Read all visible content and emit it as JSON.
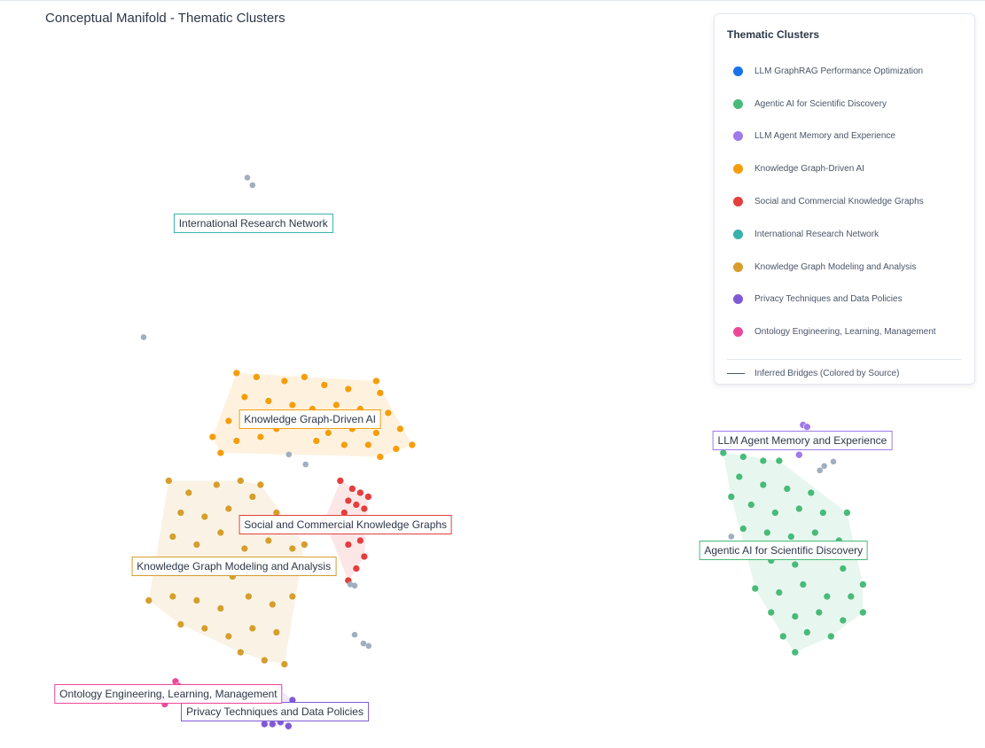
{
  "title": "Conceptual Manifold - Thematic Clusters",
  "legend": {
    "title": "Thematic Clusters",
    "bridges_label": "Inferred Bridges (Colored by Source)",
    "bridges_color": "#4a5568"
  },
  "chart_data": {
    "type": "scatter",
    "title": "Conceptual Manifold - Thematic Clusters",
    "grid": false,
    "legend_position": "top-right",
    "xlim": [
      -12.33,
      12.36
    ],
    "ylim": [
      -9.4,
      9.33
    ],
    "unassigned_color": "#a0aec0",
    "unassigned_points": [
      [
        -6.13,
        4.9
      ],
      [
        -6.0,
        4.71
      ],
      [
        -8.73,
        0.9
      ],
      [
        -5.09,
        -2.04
      ],
      [
        -4.67,
        -2.29
      ],
      [
        -3.44,
        -5.33
      ],
      [
        -3.55,
        -5.3
      ],
      [
        -3.44,
        -6.56
      ],
      [
        -3.22,
        -6.78
      ],
      [
        -3.09,
        -6.84
      ],
      [
        8.22,
        -2.44
      ],
      [
        8.56,
        -2.22
      ],
      [
        8.33,
        -2.33
      ],
      [
        6.0,
        -4.1
      ]
    ],
    "clusters": [
      {
        "name": "LLM GraphRAG Performance Optimization",
        "color": "#1a73e8",
        "points": [],
        "label_at": null
      },
      {
        "name": "Agentic AI for Scientific Discovery",
        "color": "#48bb78",
        "label_at": [
          7.31,
          -4.44
        ],
        "points": [
          [
            5.8,
            -2.0
          ],
          [
            6.3,
            -2.1
          ],
          [
            6.8,
            -2.2
          ],
          [
            7.2,
            -2.2
          ],
          [
            6.2,
            -2.6
          ],
          [
            6.8,
            -2.8
          ],
          [
            7.4,
            -2.9
          ],
          [
            8.0,
            -3.0
          ],
          [
            6.0,
            -3.1
          ],
          [
            6.5,
            -3.3
          ],
          [
            7.1,
            -3.5
          ],
          [
            7.7,
            -3.4
          ],
          [
            8.3,
            -3.5
          ],
          [
            8.9,
            -3.5
          ],
          [
            6.3,
            -3.9
          ],
          [
            6.9,
            -4.0
          ],
          [
            7.5,
            -4.1
          ],
          [
            8.1,
            -4.0
          ],
          [
            8.7,
            -4.2
          ],
          [
            9.1,
            -4.4
          ],
          [
            6.4,
            -4.6
          ],
          [
            7.0,
            -4.7
          ],
          [
            7.6,
            -4.8
          ],
          [
            8.2,
            -4.6
          ],
          [
            8.8,
            -4.9
          ],
          [
            9.3,
            -5.3
          ],
          [
            6.6,
            -5.4
          ],
          [
            7.2,
            -5.5
          ],
          [
            7.8,
            -5.3
          ],
          [
            8.4,
            -5.6
          ],
          [
            9.0,
            -5.6
          ],
          [
            7.0,
            -6.0
          ],
          [
            7.6,
            -6.1
          ],
          [
            8.2,
            -6.0
          ],
          [
            8.8,
            -6.2
          ],
          [
            9.3,
            -6.0
          ],
          [
            7.3,
            -6.6
          ],
          [
            7.9,
            -6.5
          ],
          [
            8.5,
            -6.6
          ],
          [
            7.6,
            -7.0
          ]
        ]
      },
      {
        "name": "LLM Agent Memory and Experience",
        "color": "#9f7aea",
        "label_at": [
          7.78,
          -1.69
        ],
        "points": [
          [
            7.8,
            -1.3
          ],
          [
            7.9,
            -1.35
          ],
          [
            7.7,
            -2.05
          ]
        ]
      },
      {
        "name": "Knowledge Graph-Driven AI",
        "color": "#f59e0b",
        "label_at": [
          -4.56,
          -1.16
        ],
        "points": [
          [
            -6.4,
            0.0
          ],
          [
            -5.9,
            -0.1
          ],
          [
            -5.2,
            -0.2
          ],
          [
            -4.7,
            -0.1
          ],
          [
            -4.2,
            -0.3
          ],
          [
            -3.6,
            -0.4
          ],
          [
            -2.9,
            -0.2
          ],
          [
            -2.8,
            -0.5
          ],
          [
            -6.2,
            -0.6
          ],
          [
            -5.6,
            -0.7
          ],
          [
            -5.0,
            -0.8
          ],
          [
            -4.5,
            -0.9
          ],
          [
            -3.9,
            -0.8
          ],
          [
            -3.3,
            -0.9
          ],
          [
            -2.6,
            -1.0
          ],
          [
            -6.6,
            -1.2
          ],
          [
            -6.0,
            -1.3
          ],
          [
            -5.4,
            -1.4
          ],
          [
            -4.8,
            -1.2
          ],
          [
            -4.1,
            -1.5
          ],
          [
            -3.5,
            -1.4
          ],
          [
            -2.9,
            -1.5
          ],
          [
            -2.3,
            -1.4
          ],
          [
            -2.0,
            -1.8
          ],
          [
            -7.0,
            -1.6
          ],
          [
            -6.4,
            -1.7
          ],
          [
            -5.8,
            -1.6
          ],
          [
            -4.4,
            -1.7
          ],
          [
            -3.7,
            -1.8
          ],
          [
            -3.1,
            -1.8
          ],
          [
            -2.8,
            -2.1
          ],
          [
            -2.4,
            -1.9
          ],
          [
            -6.8,
            -2.0
          ]
        ]
      },
      {
        "name": "Social and Commercial Knowledge Graphs",
        "color": "#e53e3e",
        "label_at": [
          -3.67,
          -3.8
        ],
        "points": [
          [
            -3.8,
            -2.7
          ],
          [
            -3.5,
            -2.9
          ],
          [
            -3.3,
            -3.0
          ],
          [
            -3.1,
            -3.1
          ],
          [
            -3.6,
            -3.2
          ],
          [
            -3.4,
            -3.3
          ],
          [
            -3.2,
            -3.4
          ],
          [
            -3.7,
            -3.5
          ],
          [
            -4.2,
            -3.7
          ],
          [
            -3.9,
            -3.9
          ],
          [
            -3.5,
            -3.9
          ],
          [
            -3.3,
            -4.2
          ],
          [
            -3.6,
            -4.3
          ],
          [
            -3.2,
            -4.6
          ],
          [
            -3.4,
            -4.9
          ],
          [
            -3.6,
            -5.2
          ]
        ]
      },
      {
        "name": "International Research Network",
        "color": "#38b2ac",
        "label_at": [
          -5.98,
          3.76
        ],
        "points": []
      },
      {
        "name": "Knowledge Graph Modeling and Analysis",
        "color": "#d69e2e",
        "label_at": [
          -6.47,
          -4.84
        ],
        "points": [
          [
            -8.1,
            -2.7
          ],
          [
            -7.6,
            -3.0
          ],
          [
            -6.9,
            -2.8
          ],
          [
            -6.3,
            -2.7
          ],
          [
            -6.0,
            -3.1
          ],
          [
            -5.8,
            -2.8
          ],
          [
            -7.8,
            -3.5
          ],
          [
            -7.2,
            -3.6
          ],
          [
            -6.6,
            -3.4
          ],
          [
            -6.0,
            -3.7
          ],
          [
            -5.4,
            -3.5
          ],
          [
            -8.0,
            -4.1
          ],
          [
            -7.4,
            -4.3
          ],
          [
            -6.8,
            -4.0
          ],
          [
            -6.2,
            -4.4
          ],
          [
            -5.6,
            -4.2
          ],
          [
            -5.0,
            -4.4
          ],
          [
            -4.7,
            -4.3
          ],
          [
            -8.3,
            -4.8
          ],
          [
            -7.7,
            -5.0
          ],
          [
            -7.1,
            -4.9
          ],
          [
            -6.5,
            -5.1
          ],
          [
            -5.9,
            -4.8
          ],
          [
            -5.3,
            -5.0
          ],
          [
            -4.9,
            -4.9
          ],
          [
            -8.6,
            -5.7
          ],
          [
            -8.0,
            -5.6
          ],
          [
            -7.4,
            -5.7
          ],
          [
            -6.8,
            -5.9
          ],
          [
            -6.1,
            -5.6
          ],
          [
            -5.5,
            -5.8
          ],
          [
            -5.0,
            -5.6
          ],
          [
            -7.8,
            -6.3
          ],
          [
            -7.2,
            -6.4
          ],
          [
            -6.6,
            -6.6
          ],
          [
            -6.0,
            -6.4
          ],
          [
            -5.4,
            -6.5
          ],
          [
            -6.3,
            -7.0
          ],
          [
            -5.7,
            -7.2
          ],
          [
            -5.2,
            -7.3
          ]
        ]
      },
      {
        "name": "Privacy Techniques and Data Policies",
        "color": "#805ad5",
        "label_at": [
          -5.44,
          -8.49
        ],
        "points": [
          [
            -5.33,
            -7.9
          ],
          [
            -5.7,
            -8.8
          ],
          [
            -5.5,
            -8.8
          ],
          [
            -5.3,
            -8.75
          ],
          [
            -5.1,
            -8.85
          ],
          [
            -5.0,
            -8.2
          ]
        ]
      },
      {
        "name": "Ontology Engineering, Learning, Management",
        "color": "#ec4899",
        "label_at": [
          -8.11,
          -8.04
        ],
        "points": [
          [
            -7.93,
            -7.73
          ],
          [
            -7.85,
            -7.85
          ],
          [
            -8.2,
            -8.3
          ],
          [
            -8.25,
            -8.2
          ]
        ]
      }
    ]
  }
}
